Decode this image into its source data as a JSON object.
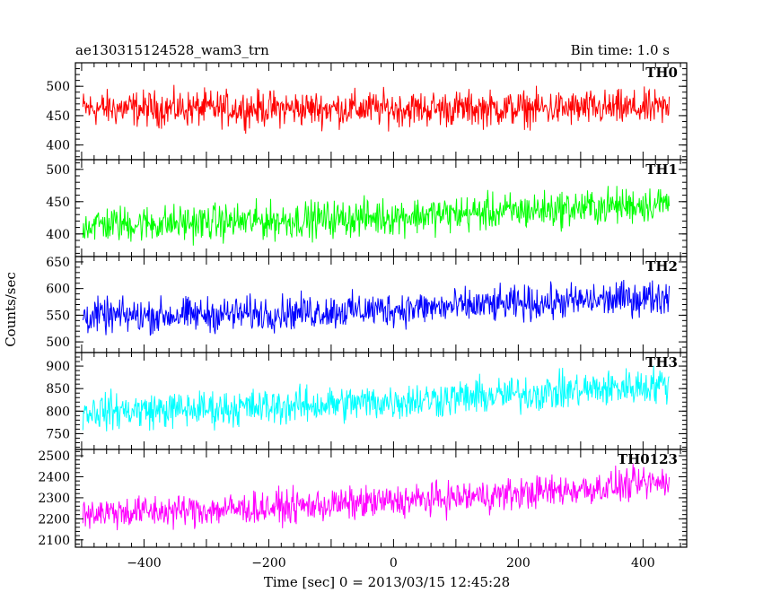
{
  "header": {
    "left_title": "ae130315124528_wam3_trn",
    "right_title": "Bin time: 1.0 s"
  },
  "chart_data": {
    "type": "line",
    "title": "ae130315124528_wam3_trn",
    "subtitle": "Bin time: 1.0 s",
    "xlabel": "Time [sec] 0 = 2013/03/15 12:45:28",
    "ylabel": "Counts/sec",
    "xlim": [
      -510,
      470
    ],
    "xticks": [
      -400,
      -200,
      0,
      200,
      400
    ],
    "grid": false,
    "panels": [
      {
        "series_name": "TH0",
        "color": "#ff0000",
        "ylim": [
          375,
          540
        ],
        "yticks": [
          400,
          450,
          500
        ],
        "x_range": [
          -498,
          442
        ],
        "mean_start": 462,
        "mean_end": 462,
        "noise_half_width": 45
      },
      {
        "series_name": "TH1",
        "color": "#00ff00",
        "ylim": [
          365,
          515
        ],
        "yticks": [
          400,
          450,
          500
        ],
        "x_range": [
          -498,
          442
        ],
        "mean_start": 415,
        "mean_end": 448,
        "noise_half_width": 42
      },
      {
        "series_name": "TH2",
        "color": "#0000ff",
        "ylim": [
          480,
          660
        ],
        "yticks": [
          500,
          550,
          600,
          650
        ],
        "x_range": [
          -498,
          442
        ],
        "mean_start": 548,
        "mean_end": 585,
        "noise_half_width": 48
      },
      {
        "series_name": "TH3",
        "color": "#00ffff",
        "ylim": [
          715,
          930
        ],
        "yticks": [
          750,
          800,
          850,
          900
        ],
        "x_range": [
          -498,
          442
        ],
        "mean_start": 800,
        "mean_end": 860,
        "noise_half_width": 60
      },
      {
        "series_name": "TH0123",
        "color": "#ff00ff",
        "ylim": [
          2065,
          2530
        ],
        "yticks": [
          2100,
          2200,
          2300,
          2400,
          2500
        ],
        "x_range": [
          -498,
          442
        ],
        "mean_start": 2230,
        "mean_end": 2375,
        "noise_half_width": 115
      }
    ]
  }
}
